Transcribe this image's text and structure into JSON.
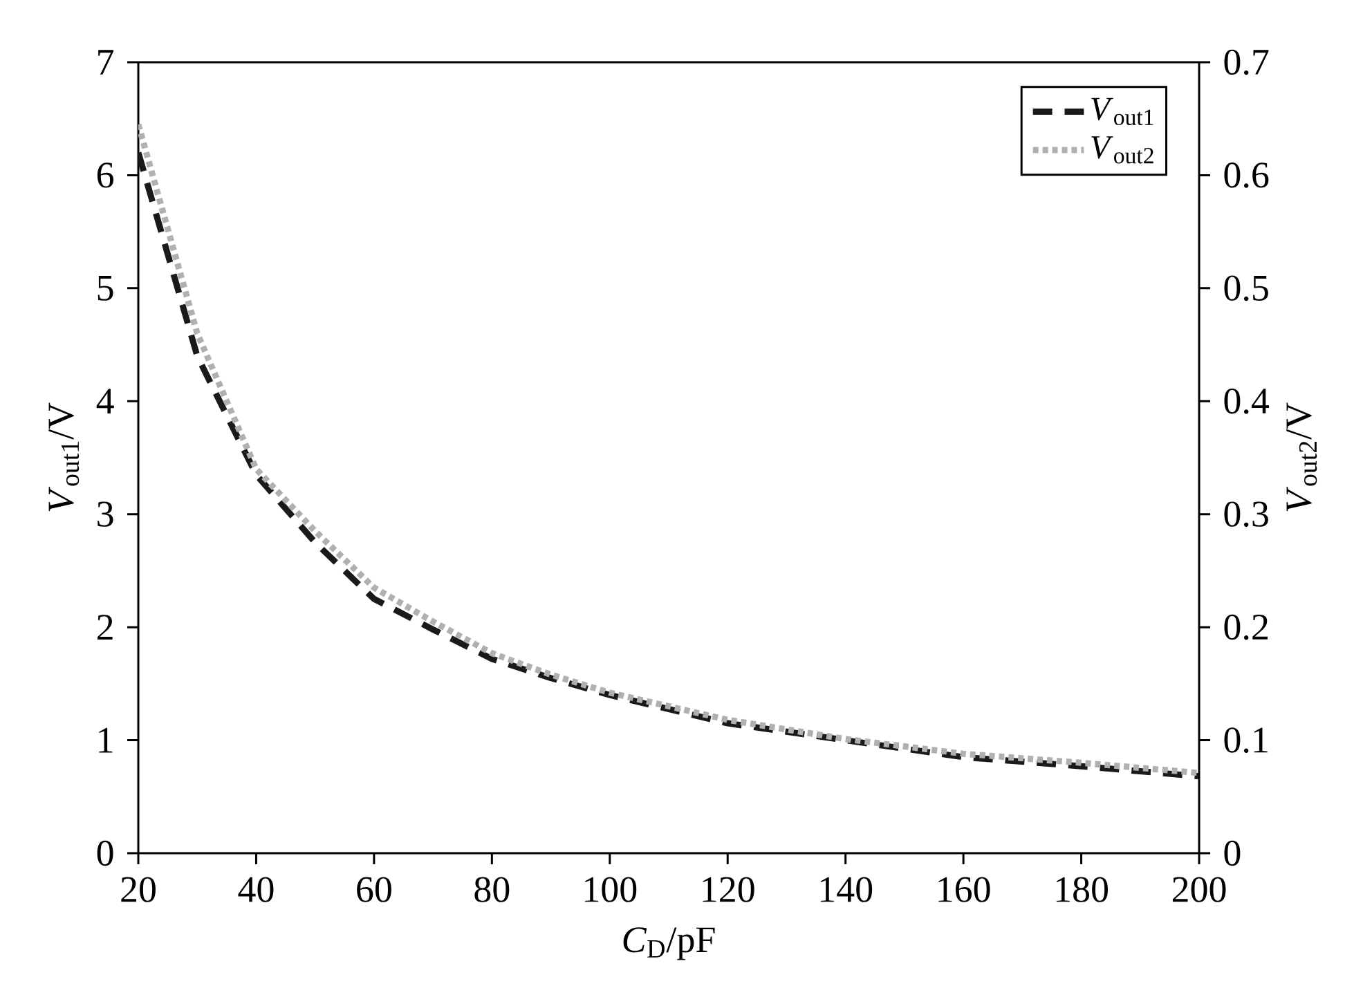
{
  "chart_data": {
    "type": "line",
    "xlabel": "*C*$_{D}$/pF",
    "ylabel": "*V*$_{out1}$/V",
    "y2label": "*V*$_{out2}$/V",
    "x": [
      20,
      30,
      40,
      50,
      60,
      70,
      80,
      90,
      100,
      120,
      140,
      160,
      180,
      200
    ],
    "series": [
      {
        "name": "*V*$_{out1}$",
        "color": "#1a1a1a",
        "line_style": "dashed",
        "values": [
          6.2,
          4.4,
          3.35,
          2.75,
          2.25,
          1.98,
          1.72,
          1.55,
          1.4,
          1.15,
          1.0,
          0.85,
          0.77,
          0.68
        ]
      },
      {
        "name": "*V*$_{out2}$",
        "color": "#b0b0b0",
        "line_style": "dotted",
        "axis": "y2",
        "values": [
          0.645,
          0.46,
          0.34,
          0.285,
          0.235,
          0.205,
          0.177,
          0.158,
          0.142,
          0.118,
          0.101,
          0.088,
          0.08,
          0.071
        ]
      }
    ],
    "xlim": [
      20,
      200
    ],
    "xticks": [
      20,
      40,
      60,
      80,
      100,
      120,
      140,
      160,
      180,
      200
    ],
    "ylim": [
      0,
      7
    ],
    "yticks": [
      0,
      1,
      2,
      3,
      4,
      5,
      6,
      7
    ],
    "y2lim": [
      0,
      0.7
    ],
    "y2ticks": [
      0,
      0.1,
      0.2,
      0.3,
      0.4,
      0.5,
      0.6,
      0.7
    ],
    "legend": "top right",
    "grid": false,
    "marker": "none"
  }
}
